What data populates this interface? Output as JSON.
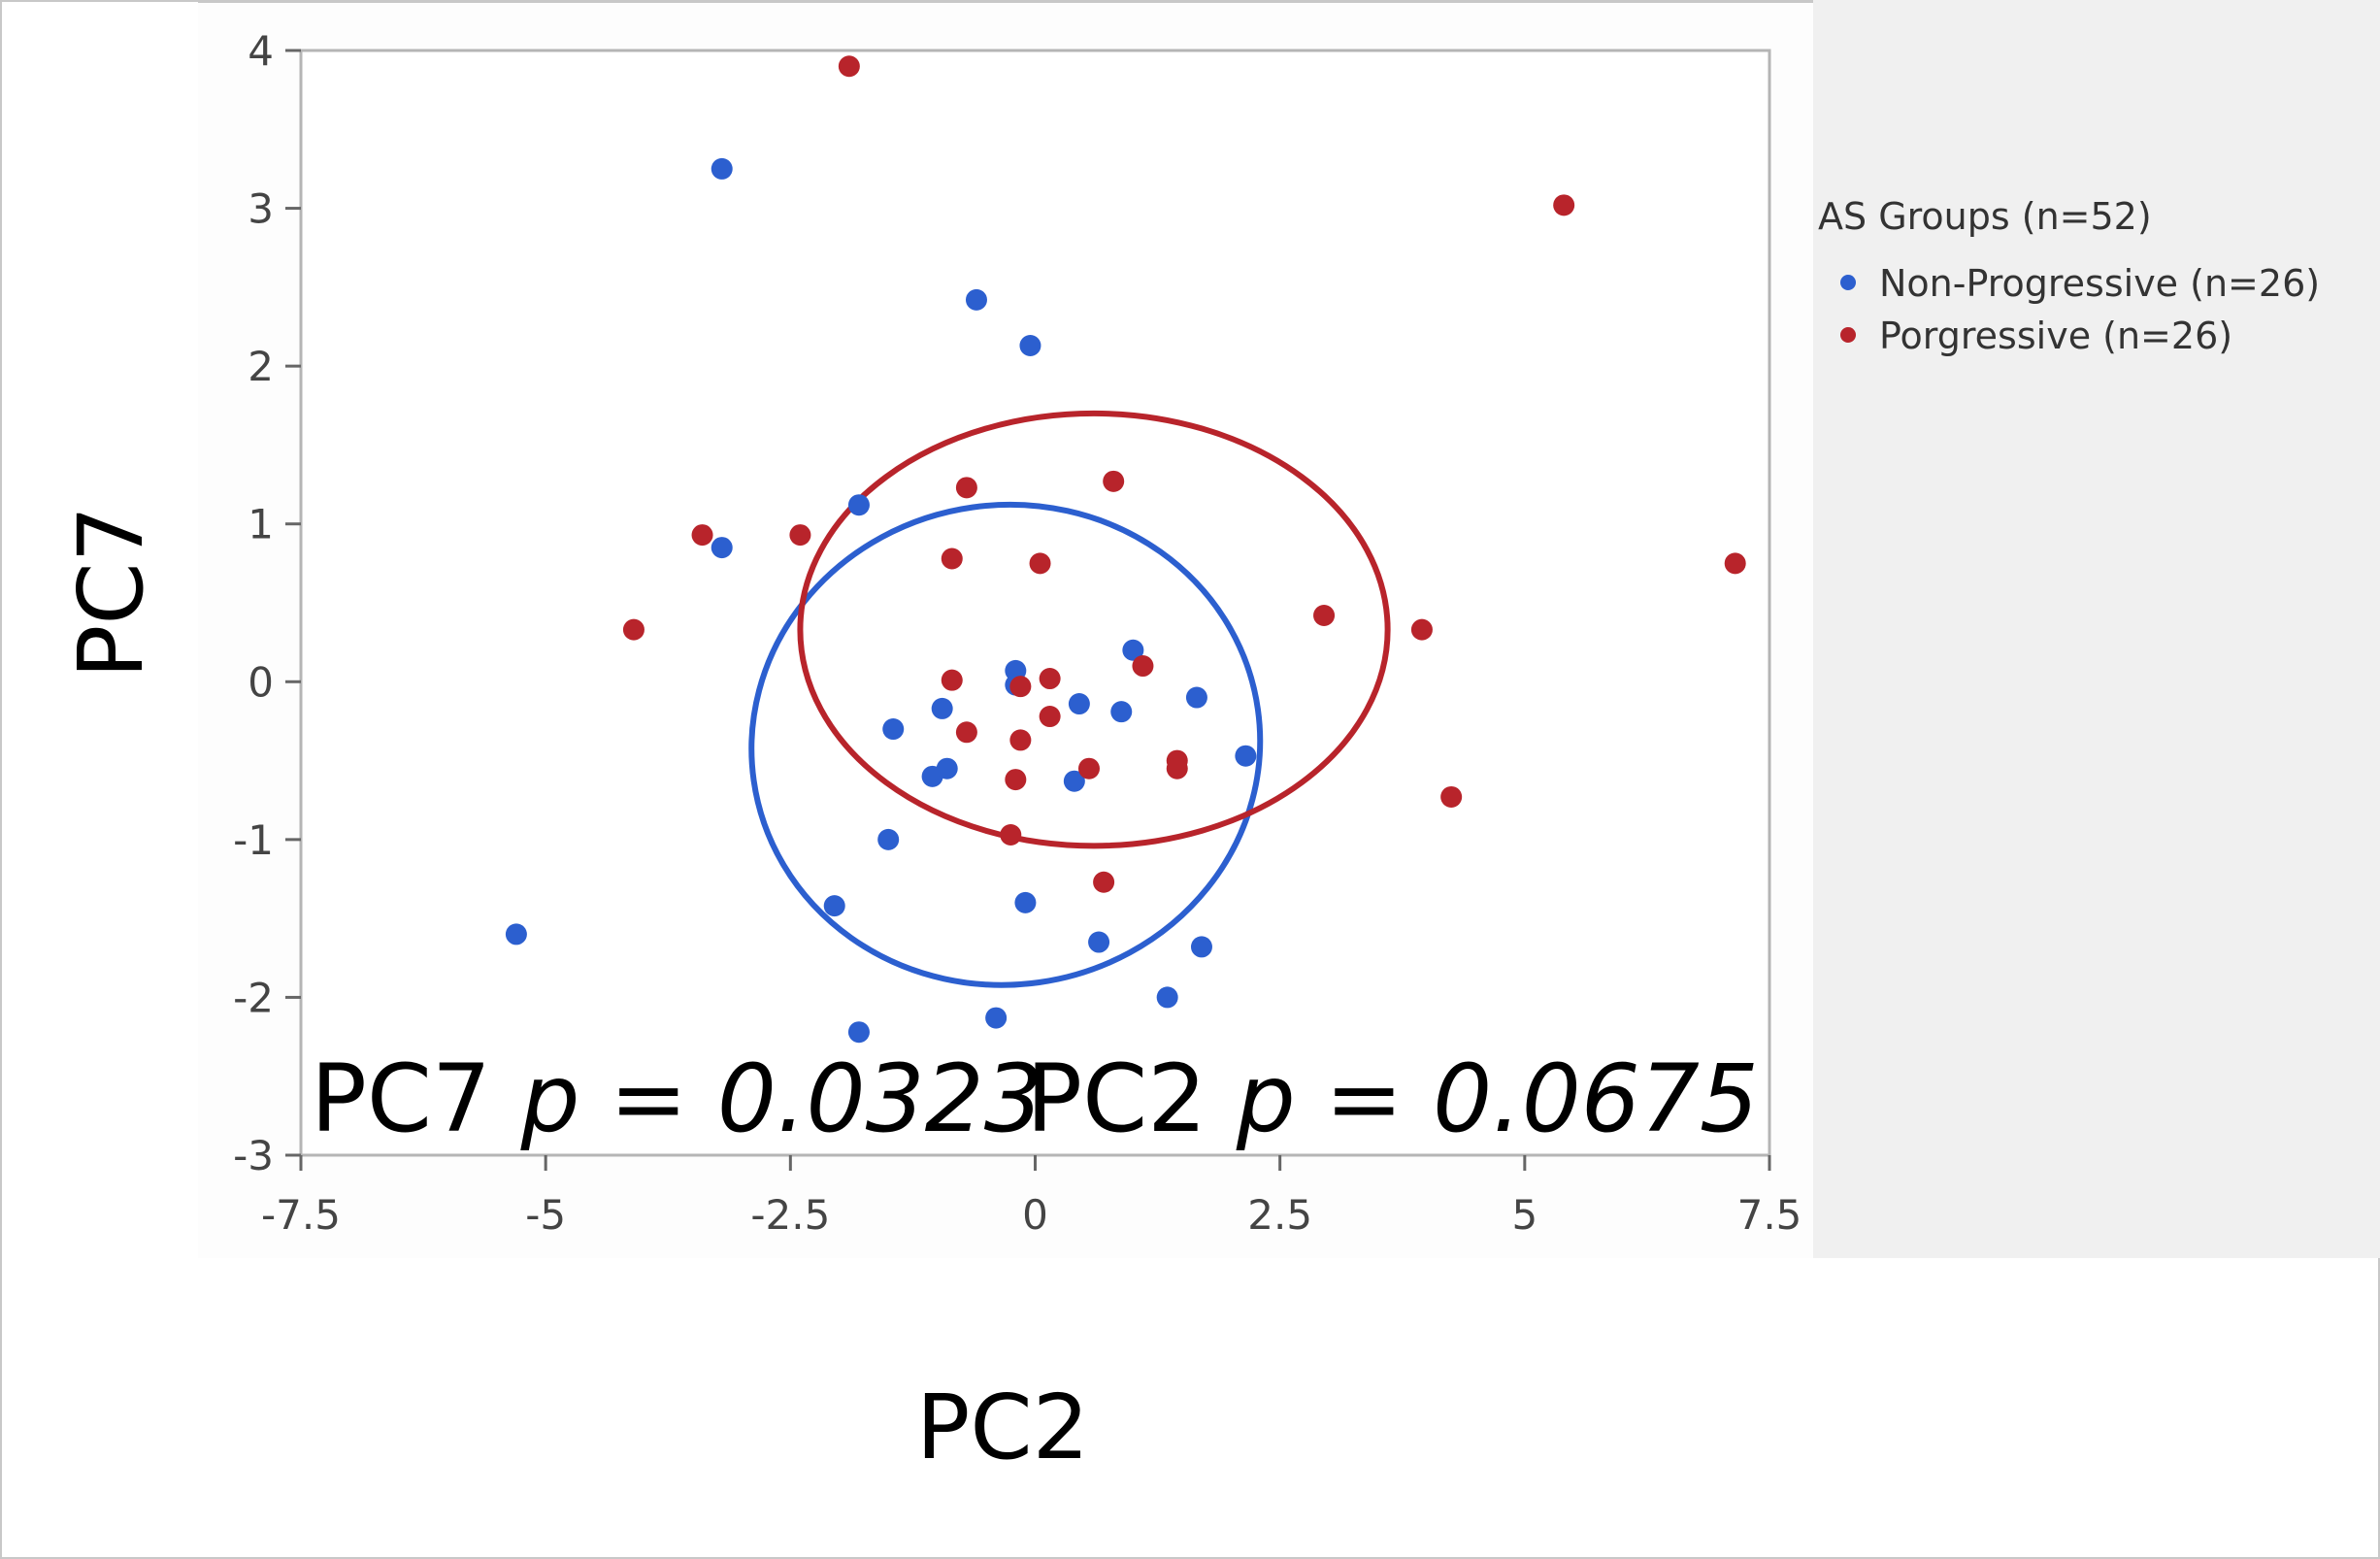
{
  "chart_data": {
    "type": "scatter",
    "xlabel": "PC2",
    "ylabel": "PC7",
    "xlim": [
      -7.5,
      7.5
    ],
    "ylim": [
      -3,
      4
    ],
    "x_ticks": [
      "-7.5",
      "-5",
      "-2.5",
      "0",
      "2.5",
      "5",
      "7.5"
    ],
    "y_ticks": [
      "4",
      "3",
      "2",
      "1",
      "0",
      "-1",
      "-2",
      "-3"
    ],
    "grid": false,
    "legend": {
      "title": "AS Groups (n=52)",
      "position": "right"
    },
    "annotations": [
      {
        "label": "PC7",
        "p_symbol": "p",
        "value": " = 0.0323"
      },
      {
        "label": "PC2",
        "p_symbol": "p",
        "value": " = 0.0675"
      }
    ],
    "series": [
      {
        "name": "Non-Progressive (n=26)",
        "color": "#2c5fcf",
        "points": [
          [
            -3.2,
            3.25
          ],
          [
            -0.6,
            2.42
          ],
          [
            -0.05,
            2.13
          ],
          [
            -1.8,
            1.12
          ],
          [
            -3.2,
            0.85
          ],
          [
            1.0,
            0.2
          ],
          [
            -0.2,
            0.07
          ],
          [
            -0.2,
            -0.02
          ],
          [
            -0.95,
            -0.17
          ],
          [
            0.45,
            -0.14
          ],
          [
            0.88,
            -0.19
          ],
          [
            1.65,
            -0.1
          ],
          [
            -1.45,
            -0.3
          ],
          [
            -1.05,
            -0.6
          ],
          [
            -0.9,
            -0.55
          ],
          [
            0.4,
            -0.63
          ],
          [
            2.15,
            -0.47
          ],
          [
            -1.5,
            -1.0
          ],
          [
            -2.05,
            -1.42
          ],
          [
            -0.1,
            -1.4
          ],
          [
            -5.3,
            -1.6
          ],
          [
            0.65,
            -1.65
          ],
          [
            1.7,
            -1.68
          ],
          [
            1.35,
            -2.0
          ],
          [
            -0.4,
            -2.13
          ],
          [
            -1.8,
            -2.22
          ]
        ],
        "ellipse": {
          "cx": -0.3,
          "cy": -0.4,
          "rx": 2.6,
          "ry": 1.52,
          "rotate_deg": -8
        }
      },
      {
        "name": "Porgressive (n=26)",
        "color": "#b8242b",
        "points": [
          [
            -1.9,
            3.9
          ],
          [
            5.4,
            3.02
          ],
          [
            0.8,
            1.27
          ],
          [
            -0.7,
            1.23
          ],
          [
            -3.4,
            0.93
          ],
          [
            -2.4,
            0.93
          ],
          [
            -0.85,
            0.78
          ],
          [
            0.05,
            0.75
          ],
          [
            7.15,
            0.75
          ],
          [
            2.95,
            0.42
          ],
          [
            3.95,
            0.33
          ],
          [
            -4.1,
            0.33
          ],
          [
            1.1,
            0.1
          ],
          [
            -0.85,
            0.01
          ],
          [
            0.15,
            0.02
          ],
          [
            -0.15,
            -0.03
          ],
          [
            0.15,
            -0.22
          ],
          [
            -0.7,
            -0.32
          ],
          [
            -0.15,
            -0.37
          ],
          [
            0.55,
            -0.55
          ],
          [
            1.45,
            -0.5
          ],
          [
            1.45,
            -0.55
          ],
          [
            -0.2,
            -0.62
          ],
          [
            4.25,
            -0.73
          ],
          [
            -0.25,
            -0.97
          ],
          [
            0.7,
            -1.27
          ]
        ],
        "ellipse": {
          "cx": 0.6,
          "cy": 0.33,
          "rx": 3.0,
          "ry": 1.37,
          "rotate_deg": 0
        }
      }
    ]
  }
}
